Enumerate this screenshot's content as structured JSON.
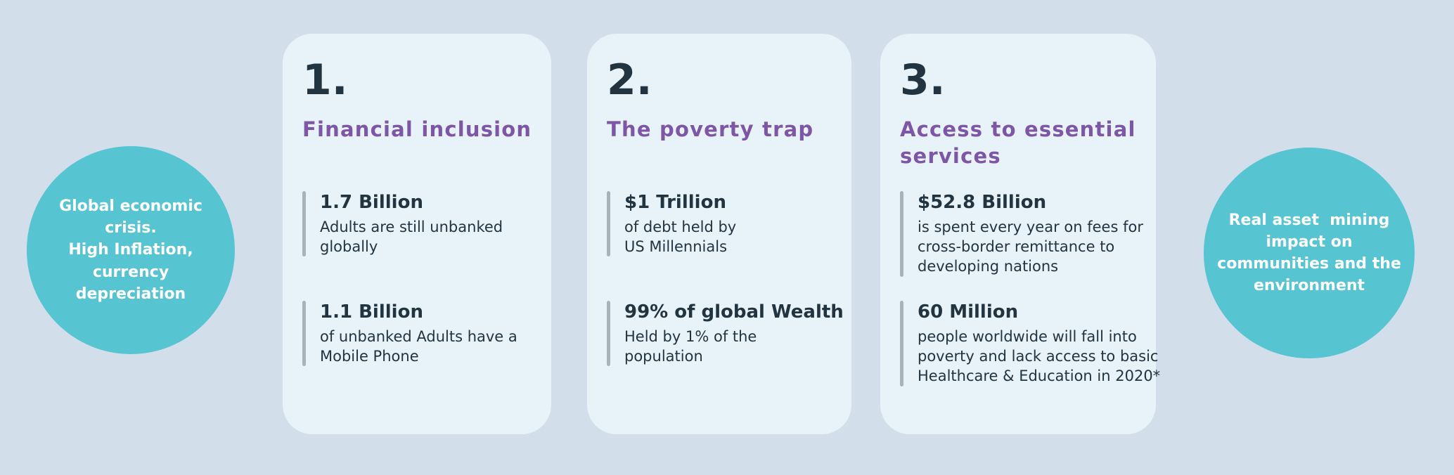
{
  "colors": {
    "background": "#d2dfeb",
    "card": "#e8f2f9",
    "accent-teal": "#57c4d1",
    "accent-purple": "#7d57a5",
    "text-dark": "#223440",
    "stat-bar": "#a9b1b9",
    "circle-text": "#ffffff"
  },
  "left_circle": {
    "text": "Global economic\ncrisis.\nHigh Inflation,\ncurrency\ndepreciation"
  },
  "right_circle": {
    "text": "Real asset  mining\nimpact on\ncommunities and the\nenvironment"
  },
  "cards": [
    {
      "number": "1.",
      "title": "Financial inclusion",
      "stats": [
        {
          "value": "1.7 Billion",
          "description": "Adults are still unbanked\nglobally"
        },
        {
          "value": "1.1 Billion",
          "description": "of unbanked Adults have a\nMobile Phone"
        }
      ]
    },
    {
      "number": "2.",
      "title": "The poverty trap",
      "stats": [
        {
          "value": "$1 Trillion",
          "description": "of debt held by\nUS Millennials"
        },
        {
          "value": "99% of global Wealth",
          "description": "Held by 1% of the\npopulation"
        }
      ]
    },
    {
      "number": "3.",
      "title": "Access to essential\nservices",
      "stats": [
        {
          "value": "$52.8 Billion",
          "description": "is spent every year on fees for\ncross-border remittance to\ndeveloping nations"
        },
        {
          "value": "60 Million",
          "description": "people worldwide will fall into\npoverty and lack access to basic\nHealthcare & Education in 2020*"
        }
      ]
    }
  ]
}
